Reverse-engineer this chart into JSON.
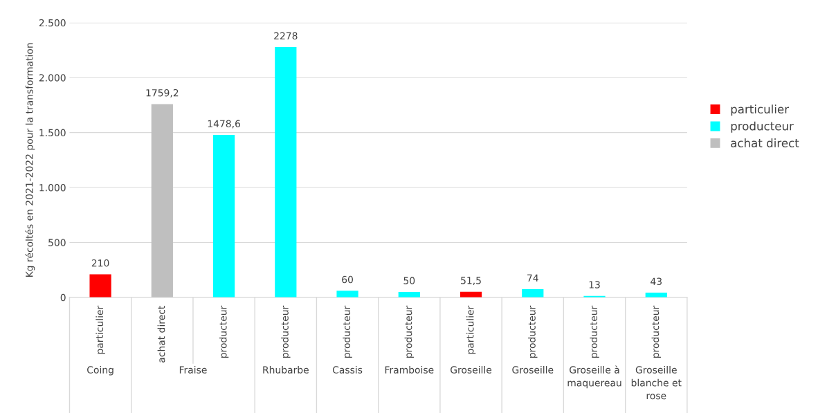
{
  "chart_data": {
    "type": "bar",
    "ylabel": "Kg récoltés en 2021-2022 pour la transformation",
    "categories": [
      "Coing",
      "Fraise",
      null,
      "Rhubarbe",
      "Cassis",
      "Framboise",
      "Groseille",
      "Groseille",
      "Groseille à\nmaquereau",
      "Groseille\nblanche et\nrose"
    ],
    "series": [
      {
        "name": "particulier",
        "color": "#ff0000",
        "values": [
          210,
          null,
          null,
          null,
          null,
          null,
          51.5,
          null,
          null,
          null
        ],
        "value_labels": [
          "210",
          null,
          null,
          null,
          null,
          null,
          "51,5",
          null,
          null,
          null
        ]
      },
      {
        "name": "producteur",
        "color": "#00ffff",
        "values": [
          null,
          null,
          1478.6,
          2278,
          60,
          50,
          null,
          74,
          13,
          43
        ],
        "value_labels": [
          null,
          null,
          "1478,6",
          "2278",
          "60",
          "50",
          null,
          "74",
          "13",
          "43"
        ]
      },
      {
        "name": "achat direct",
        "color": "#bfbfbf",
        "values": [
          null,
          1759.2,
          null,
          null,
          null,
          null,
          null,
          null,
          null,
          null
        ],
        "value_labels": [
          null,
          "1759,2",
          null,
          null,
          null,
          null,
          null,
          null,
          null,
          null
        ]
      }
    ],
    "ylim": [
      0,
      2500
    ],
    "yticks": [
      0,
      500,
      {
        "value": 1000,
        "label": "1.000"
      },
      {
        "value": 1500,
        "label": "1.500"
      },
      {
        "value": 2000,
        "label": "2.000"
      },
      {
        "value": 2500,
        "label": "2.500"
      }
    ],
    "grid": "y",
    "legend": "right"
  }
}
